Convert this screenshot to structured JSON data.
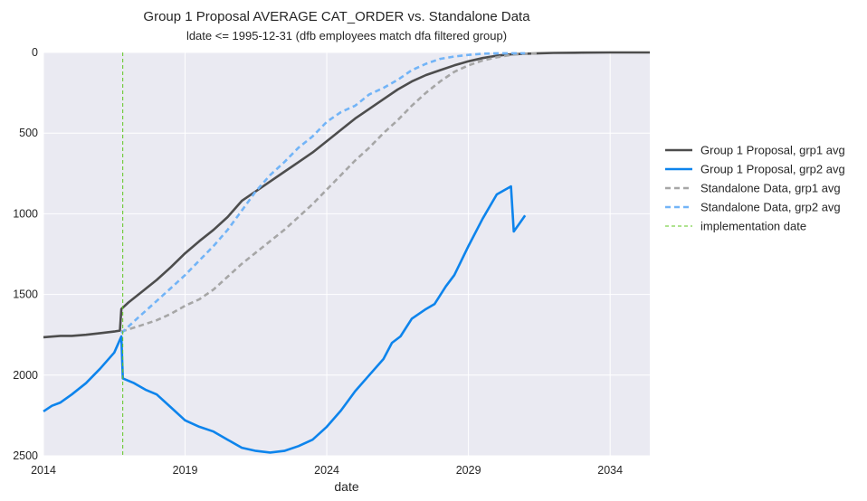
{
  "chart_data": {
    "type": "line",
    "title": "Group 1 Proposal AVERAGE CAT_ORDER vs. Standalone Data",
    "subtitle": "ldate <= 1995-12-31  (dfb employees match dfa filtered group)",
    "xlabel": "date",
    "ylabel": "",
    "xlim": [
      2014,
      2035.4
    ],
    "ylim": [
      2500,
      0
    ],
    "y_inverted": true,
    "x_ticks": [
      "2014",
      "2019",
      "2024",
      "2029",
      "2034"
    ],
    "y_ticks": [
      "0",
      "500",
      "1000",
      "1500",
      "2000",
      "2500"
    ],
    "grid": true,
    "legend_position": "right",
    "series": [
      {
        "name": "Group 1 Proposal, grp1 avg",
        "color": "#4d4d4d",
        "style": "solid",
        "x": [
          2014.0,
          2014.6,
          2015.0,
          2015.5,
          2016.0,
          2016.5,
          2016.7,
          2016.75,
          2017.0,
          2017.5,
          2018.0,
          2018.5,
          2019.0,
          2019.5,
          2020.0,
          2020.5,
          2021.0,
          2021.5,
          2022.0,
          2022.5,
          2023.0,
          2023.5,
          2024.0,
          2024.5,
          2025.0,
          2025.5,
          2026.0,
          2026.5,
          2027.0,
          2027.5,
          2028.0,
          2028.5,
          2029.0,
          2029.5,
          2030.0,
          2030.5,
          2031.0,
          2031.5,
          2032.0,
          2033.0,
          2034.0,
          2035.4
        ],
        "y": [
          1765,
          1757,
          1757,
          1750,
          1740,
          1730,
          1724,
          1590,
          1550,
          1480,
          1410,
          1330,
          1245,
          1170,
          1100,
          1020,
          920,
          860,
          800,
          740,
          680,
          620,
          550,
          480,
          410,
          350,
          290,
          230,
          180,
          140,
          110,
          80,
          55,
          35,
          20,
          12,
          8,
          5,
          3,
          1,
          0,
          0
        ]
      },
      {
        "name": "Group 1 Proposal, grp2 avg",
        "color": "#0d84ec",
        "style": "solid",
        "x": [
          2014.0,
          2014.3,
          2014.6,
          2015.0,
          2015.5,
          2016.0,
          2016.5,
          2016.75,
          2016.8,
          2017.2,
          2017.6,
          2018.0,
          2018.5,
          2019.0,
          2019.5,
          2020.0,
          2020.5,
          2021.0,
          2021.5,
          2022.0,
          2022.5,
          2023.0,
          2023.5,
          2024.0,
          2024.5,
          2025.0,
          2025.5,
          2026.0,
          2026.3,
          2026.6,
          2027.0,
          2027.5,
          2027.8,
          2028.2,
          2028.5,
          2029.0,
          2029.5,
          2030.0,
          2030.5,
          2030.6,
          2030.8,
          2031.0
        ],
        "y": [
          2225,
          2190,
          2170,
          2120,
          2050,
          1960,
          1860,
          1760,
          2020,
          2050,
          2090,
          2120,
          2200,
          2280,
          2320,
          2350,
          2400,
          2450,
          2470,
          2480,
          2470,
          2440,
          2400,
          2320,
          2220,
          2100,
          2000,
          1900,
          1800,
          1760,
          1650,
          1590,
          1560,
          1450,
          1380,
          1200,
          1030,
          880,
          830,
          1110,
          1060,
          1010
        ]
      },
      {
        "name": "Standalone Data, grp1 avg",
        "color": "#a6a6a6",
        "style": "dashed",
        "x": [
          2016.75,
          2017.3,
          2018.0,
          2018.5,
          2019.0,
          2019.5,
          2020.0,
          2020.5,
          2021.0,
          2021.5,
          2022.0,
          2022.5,
          2023.0,
          2023.5,
          2024.0,
          2024.5,
          2025.0,
          2025.5,
          2026.0,
          2026.5,
          2027.0,
          2027.5,
          2028.0,
          2028.5,
          2029.0,
          2029.5,
          2030.0,
          2030.5,
          2031.0,
          2031.5
        ],
        "y": [
          1730,
          1700,
          1660,
          1620,
          1570,
          1530,
          1470,
          1390,
          1310,
          1240,
          1170,
          1100,
          1020,
          940,
          850,
          760,
          670,
          590,
          500,
          420,
          330,
          250,
          180,
          120,
          80,
          50,
          30,
          15,
          8,
          5
        ]
      },
      {
        "name": "Standalone Data, grp2 avg",
        "color": "#72b4f7",
        "style": "dashed",
        "x": [
          2016.75,
          2017.3,
          2018.0,
          2018.5,
          2019.0,
          2019.5,
          2020.0,
          2020.5,
          2021.0,
          2021.5,
          2022.0,
          2022.5,
          2023.0,
          2023.5,
          2024.0,
          2024.5,
          2025.0,
          2025.5,
          2026.0,
          2026.5,
          2027.0,
          2027.5,
          2028.0,
          2028.5,
          2029.0,
          2029.5,
          2030.0,
          2030.5,
          2031.0
        ],
        "y": [
          1740,
          1650,
          1540,
          1460,
          1380,
          1290,
          1200,
          1100,
          980,
          860,
          760,
          680,
          590,
          520,
          430,
          370,
          330,
          260,
          220,
          170,
          110,
          70,
          40,
          25,
          15,
          8,
          5,
          5,
          5
        ]
      }
    ],
    "annotations": [
      {
        "name": "implementation date",
        "type": "vline",
        "x": 2016.8,
        "color": "#5fc71f",
        "style": "dashed"
      }
    ],
    "legend": [
      "Group 1 Proposal, grp1 avg",
      "Group 1 Proposal, grp2 avg",
      "Standalone Data, grp1 avg",
      "Standalone Data, grp2 avg",
      "implementation date"
    ],
    "colors": {
      "plot_background": "#eaeaf2",
      "grid": "#ffffff"
    }
  }
}
